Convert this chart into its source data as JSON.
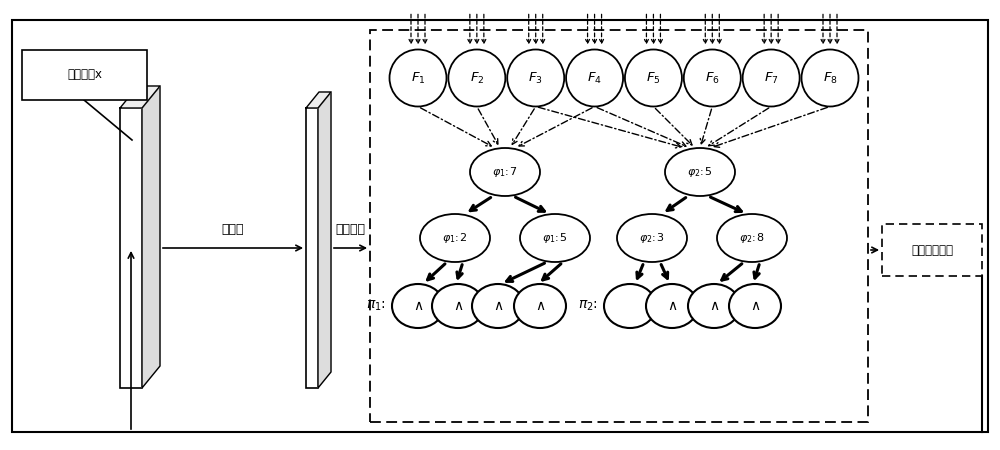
{
  "bg_color": "#ffffff",
  "input_box_label": "输入图像x",
  "conv_label": "卷积层",
  "fc_label": "全连接层",
  "spf_label": "自步学习框架",
  "f_labels": [
    "$F_1$",
    "$F_2$",
    "$F_3$",
    "$F_4$",
    "$F_5$",
    "$F_6$",
    "$F_7$",
    "$F_8$"
  ],
  "phi1_root": "$\\varphi_1\\!:\\!7$",
  "phi1_left": "$\\varphi_1\\!:\\!2$",
  "phi1_right": "$\\varphi_1\\!:\\!5$",
  "phi2_root": "$\\varphi_2\\!:\\!5$",
  "phi2_left": "$\\varphi_2\\!:\\!3$",
  "phi2_right": "$\\varphi_2\\!:\\!8$",
  "pi1_label": "$\\pi_1$:",
  "pi2_label": "$\\pi_2$:",
  "wedge": "$\\wedge$"
}
